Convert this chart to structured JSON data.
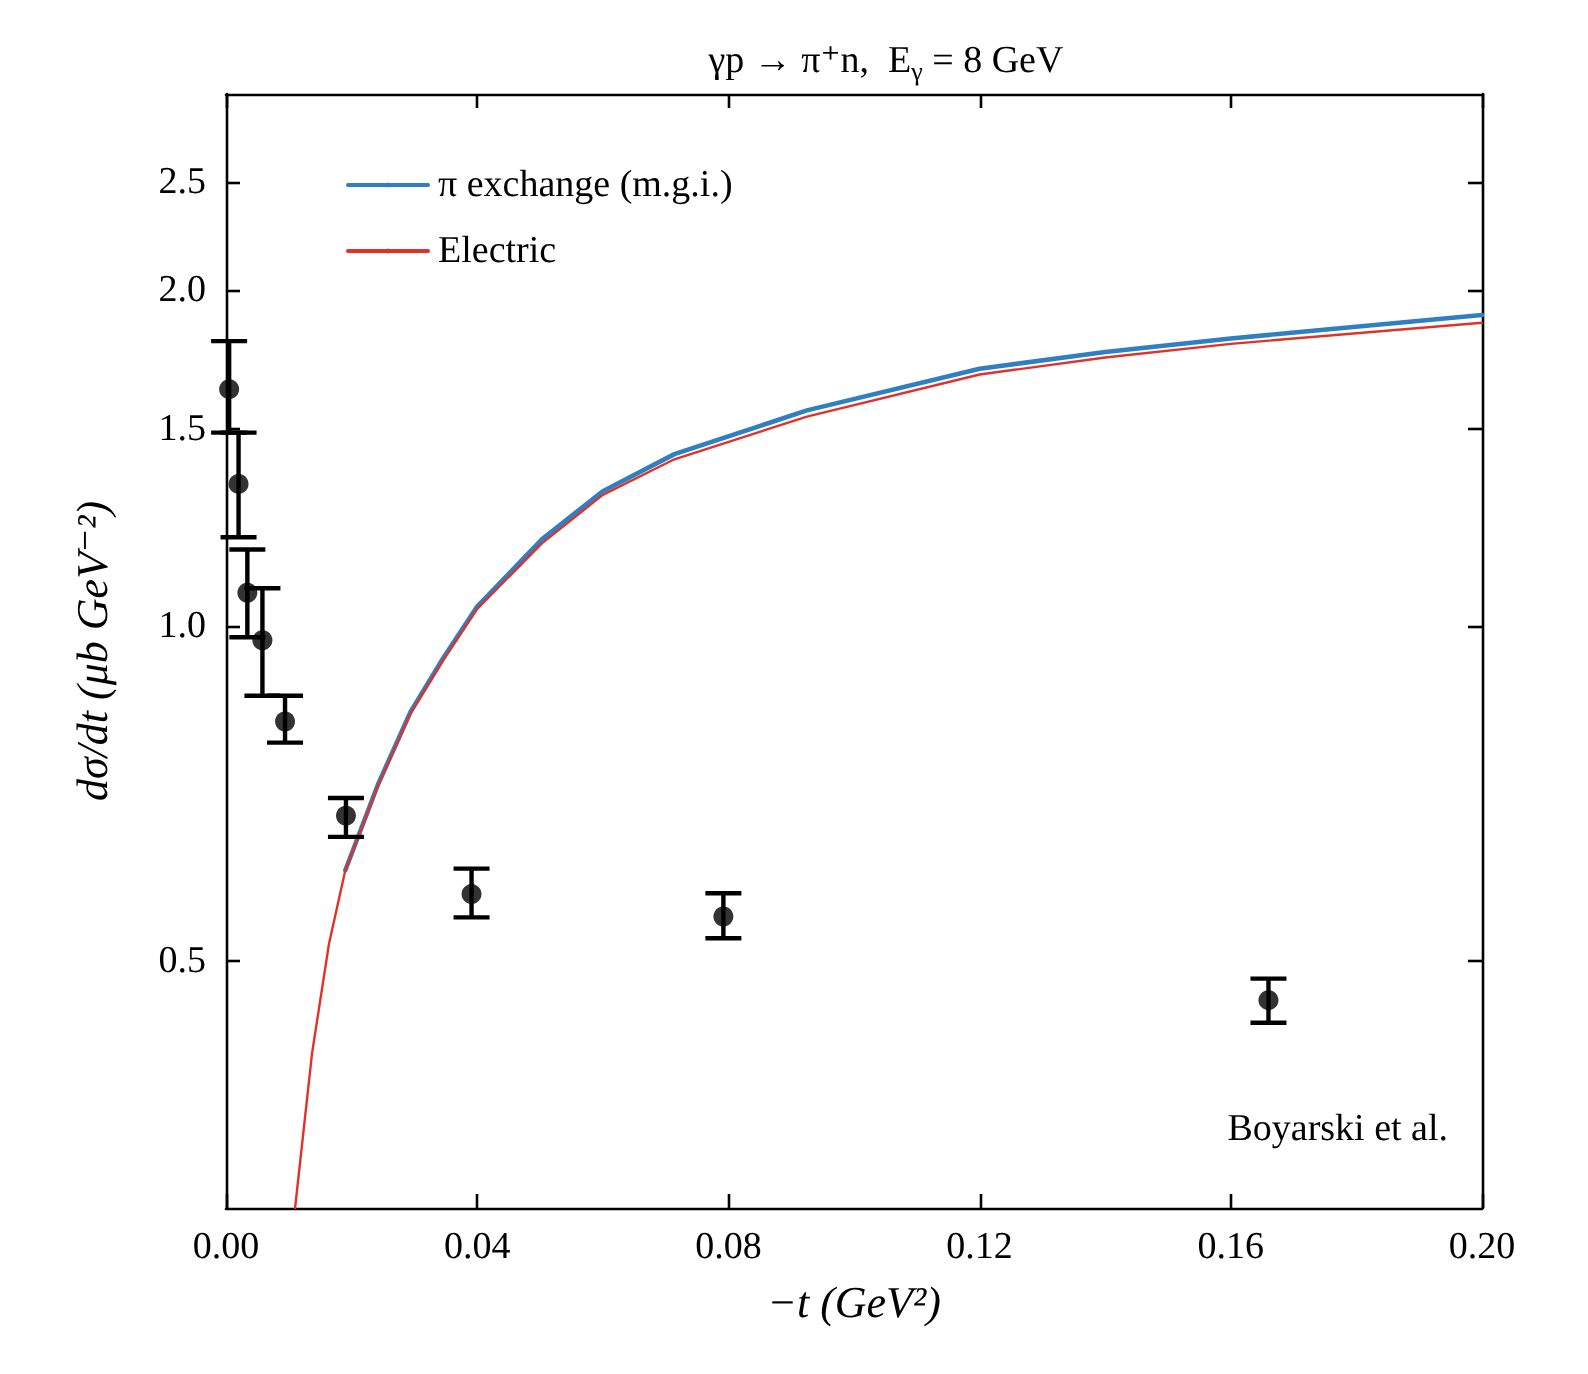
{
  "chart_data": {
    "type": "line",
    "title": "γp → π⁺n,  E$_{γ}$ = 8 GeV",
    "xlabel": "−t (GeV²)",
    "ylabel": "dσ/dt (μb GeV⁻²)",
    "xlim": [
      0,
      0.2
    ],
    "xticks": [
      {
        "value": 0,
        "label": "0.00"
      },
      0.04,
      0.08,
      0.12,
      0.16,
      {
        "value": 0.2,
        "label": "0.20"
      }
    ],
    "ylim": [
      0.3,
      3.0
    ],
    "yticks": [
      0.5,
      {
        "value": 1,
        "label": "1.0"
      },
      1.5,
      {
        "value": 2,
        "label": "2.0"
      },
      2.5
    ],
    "log": "y",
    "grid": false,
    "legend": "top left",
    "line_style": "solid",
    "series": [
      {
        "name": "π exchange (m.g.i.)",
        "color": "#2f7fc1",
        "x": [
          0.019,
          0.0242,
          0.0294,
          0.0346,
          0.04,
          0.0503,
          0.06,
          0.0714,
          0.0925,
          0.12,
          0.14,
          0.16,
          0.2
        ],
        "values": [
          0.603,
          0.72,
          0.837,
          0.935,
          1.04,
          1.195,
          1.32,
          1.425,
          1.56,
          1.7,
          1.76,
          1.81,
          1.9
        ]
      },
      {
        "name": "Electric",
        "color": "#e0322a",
        "x": [
          0.011,
          0.0137,
          0.0164,
          0.019,
          0.0242,
          0.0294,
          0.0346,
          0.04,
          0.0503,
          0.06,
          0.0714,
          0.0925,
          0.12,
          0.14,
          0.16,
          0.2
        ],
        "values": [
          0.3,
          0.413,
          0.518,
          0.603,
          0.718,
          0.834,
          0.931,
          1.035,
          1.185,
          1.31,
          1.41,
          1.54,
          1.68,
          1.74,
          1.79,
          1.87
        ]
      },
      {
        "name": "Boyarski et al.",
        "type": "scatter",
        "color": "#000000",
        "marker": "circle",
        "x": [
          0.0005,
          0.002,
          0.0034,
          0.0058,
          0.0094,
          0.0191,
          0.0391,
          0.0792,
          0.166
        ],
        "values": [
          1.63,
          1.34,
          1.07,
          0.97,
          0.82,
          0.675,
          0.574,
          0.548,
          0.461
        ],
        "errors": [
          [
            1.49,
            1.8
          ],
          [
            1.2,
            1.49
          ],
          [
            0.976,
            1.17
          ],
          [
            0.865,
            1.08
          ],
          [
            0.785,
            0.865
          ],
          [
            0.646,
            0.7
          ],
          [
            0.547,
            0.605
          ],
          [
            0.524,
            0.575
          ],
          [
            0.44,
            0.482
          ]
        ]
      }
    ]
  }
}
